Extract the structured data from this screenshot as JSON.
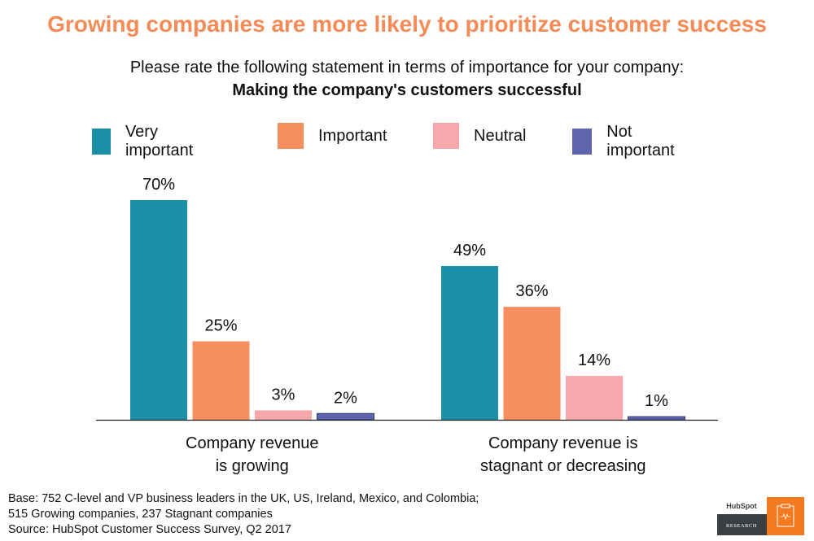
{
  "title": "Growing companies are more likely to prioritize customer success",
  "question": "Please rate the following statement in terms of importance for your company:",
  "statement": "Making the company's customers successful",
  "chart_data": {
    "type": "bar",
    "categories": [
      "Company revenue is growing",
      "Company revenue is stagnant or decreasing"
    ],
    "category_lines": [
      [
        "Company revenue",
        "is growing"
      ],
      [
        "Company revenue is",
        "stagnant or decreasing"
      ]
    ],
    "series": [
      {
        "name": "Very important",
        "color": "#1a8fa5",
        "values": [
          70,
          49
        ]
      },
      {
        "name": "Important",
        "color": "#f68e60",
        "values": [
          25,
          36
        ]
      },
      {
        "name": "Neutral",
        "color": "#f8a8ad",
        "values": [
          3,
          14
        ]
      },
      {
        "name": "Not important",
        "color": "#5f65ad",
        "values": [
          2,
          1
        ]
      }
    ],
    "value_suffix": "%",
    "legend_position": "top",
    "grid": false,
    "ylim": [
      0,
      100
    ]
  },
  "footnote": [
    "Base: 752 C-level and VP business leaders in the UK, US, Ireland, Mexico, and Colombia;",
    "515 Growing companies, 237 Stagnant companies",
    "Source: HubSpot Customer Success Survey, Q2 2017"
  ],
  "logo": {
    "brand": "HubSpot",
    "label": "RESEARCH",
    "accent": "#f47a20",
    "dark": "#3b3f41"
  }
}
